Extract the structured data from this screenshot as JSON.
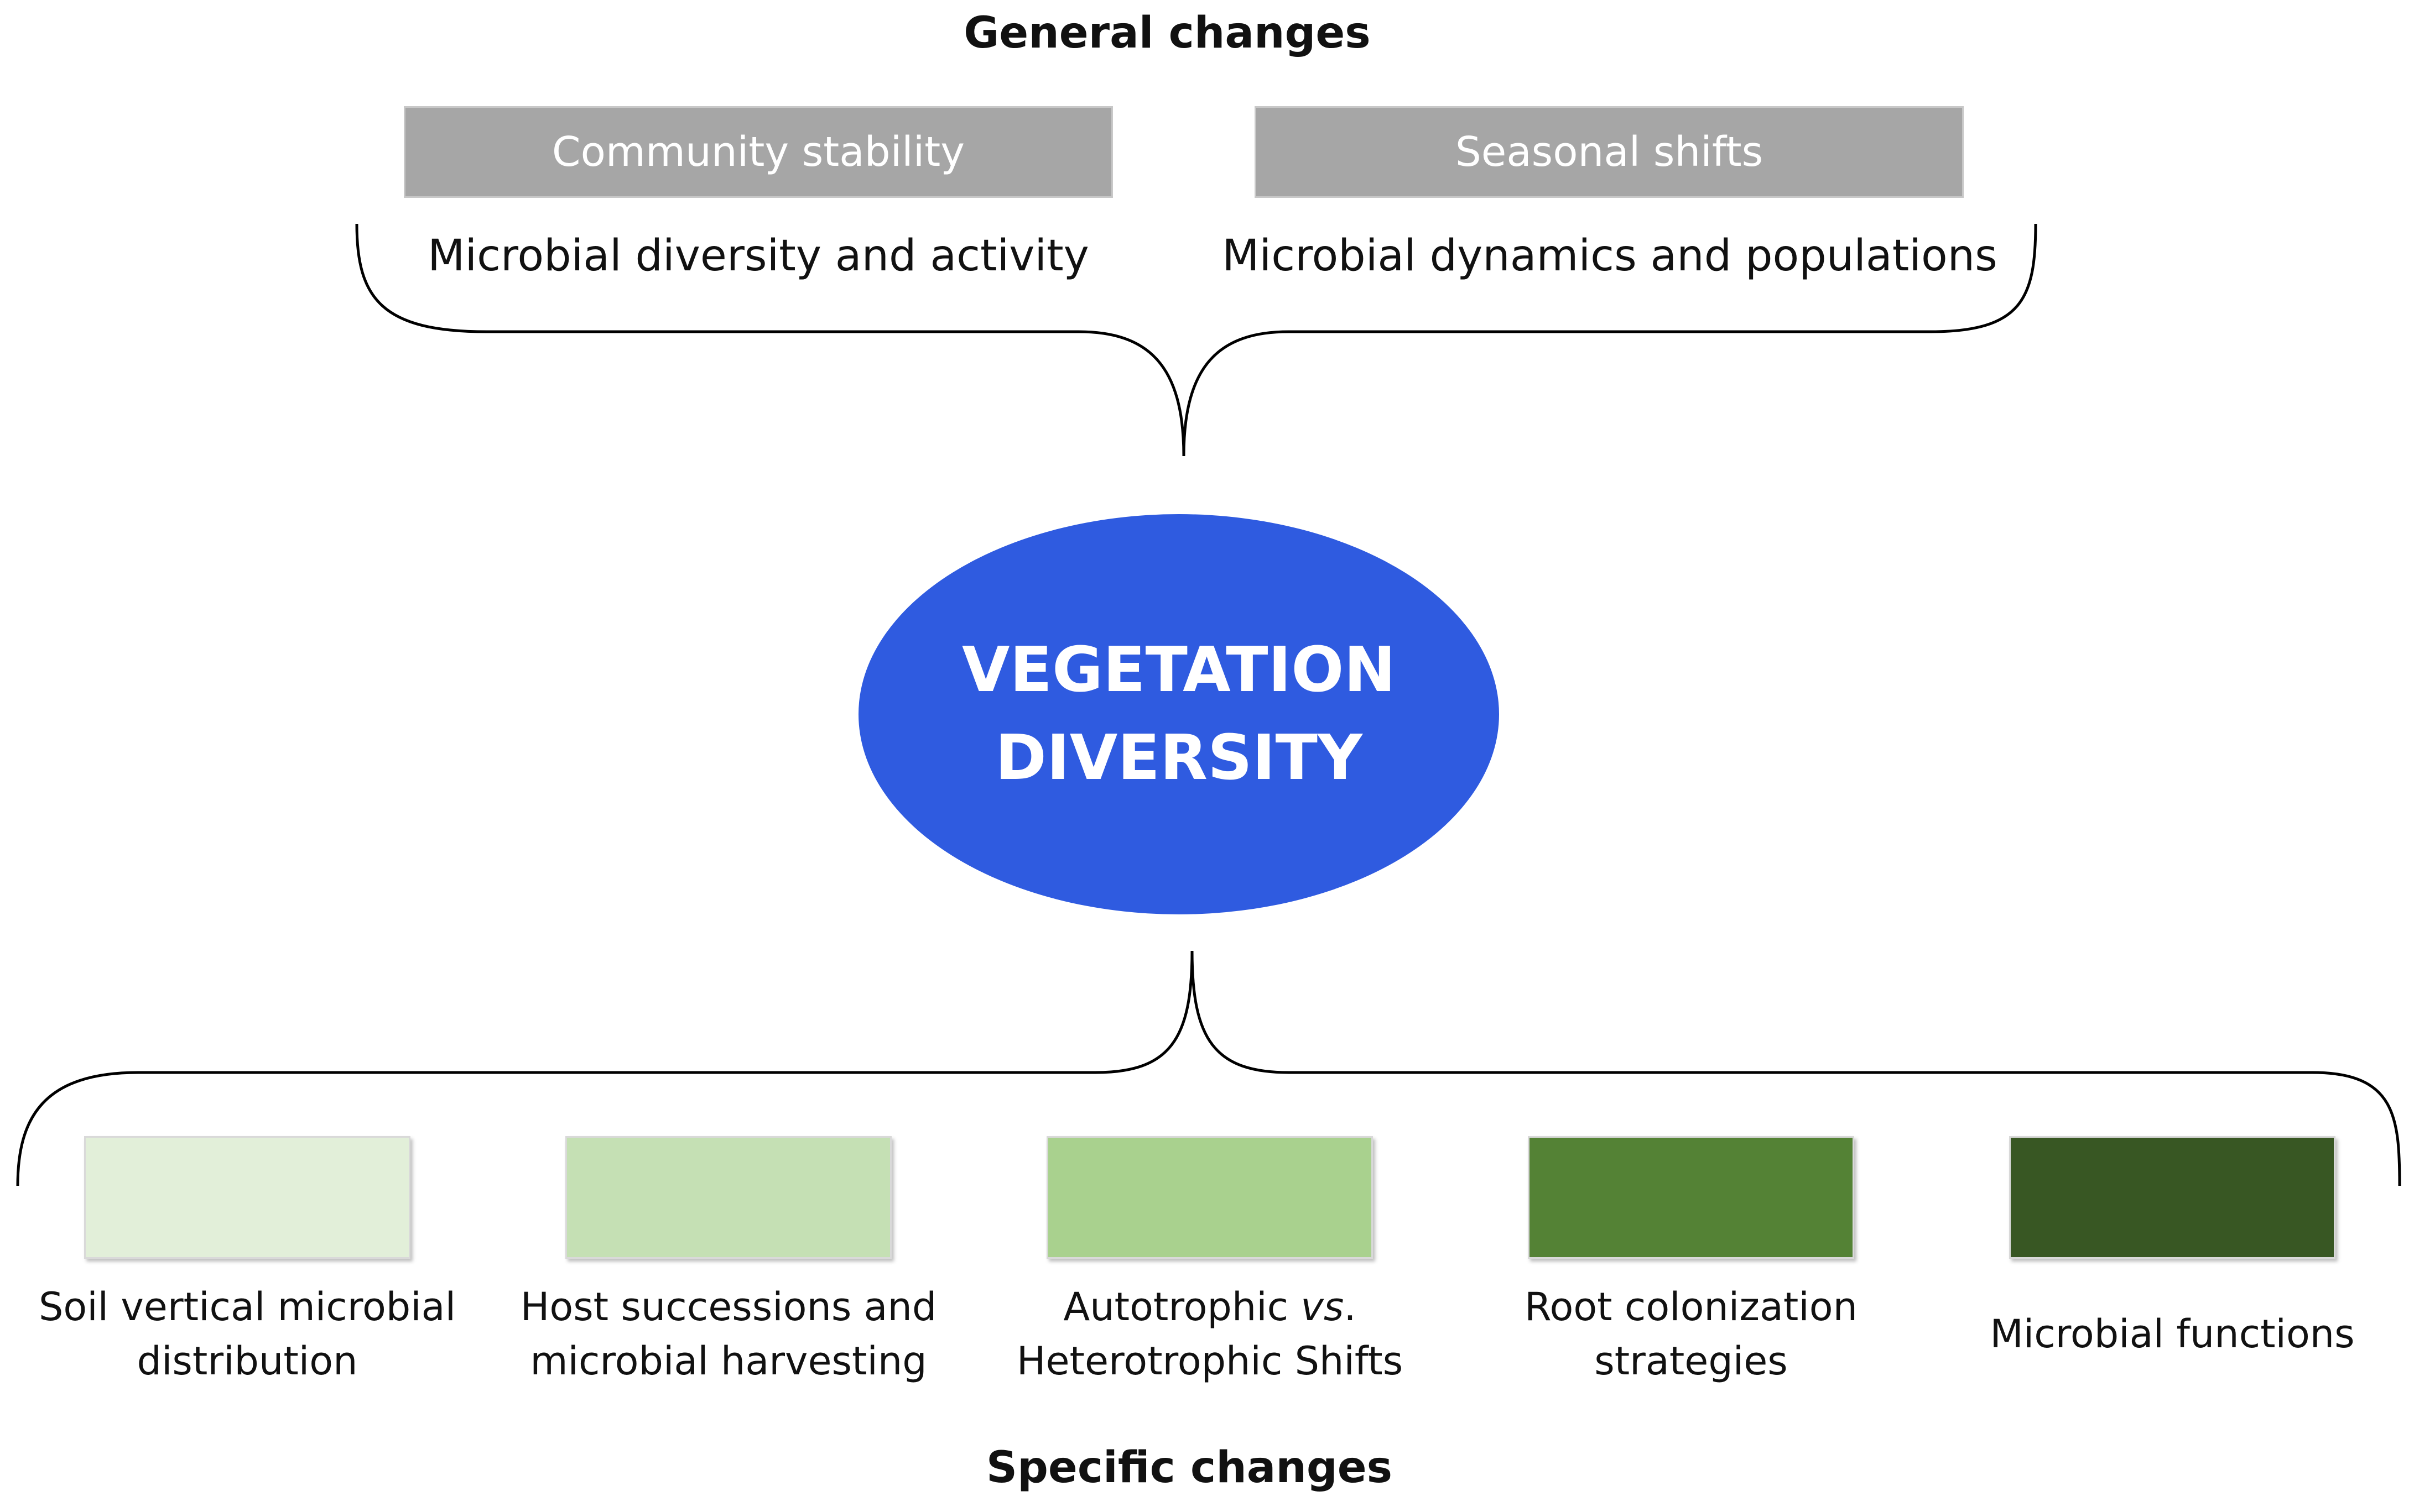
{
  "general": {
    "heading": "General changes",
    "boxes": [
      {
        "label": "Community stability",
        "subtitle": "Microbial diversity and activity"
      },
      {
        "label": "Seasonal shifts",
        "subtitle": "Microbial dynamics and populations"
      }
    ]
  },
  "center": {
    "line1": "VEGETATION",
    "line2": "DIVERSITY",
    "color": "#2f5be0"
  },
  "specific": {
    "heading": "Specific changes",
    "items": [
      {
        "line1": "Soil vertical microbial",
        "line2": "distribution",
        "color": "#e2efd9"
      },
      {
        "line1": "Host successions and",
        "line2": "microbial harvesting",
        "color": "#c5e0b4"
      },
      {
        "line1_prefix": "Autotrophic ",
        "line1_italic": "vs",
        "line1_suffix": ".",
        "line2": "Heterotrophic Shifts",
        "color": "#a9d18e"
      },
      {
        "line1": "Root colonization",
        "line2": "strategies",
        "color": "#548235"
      },
      {
        "line1": "Microbial functions",
        "color": "#385723"
      }
    ]
  }
}
